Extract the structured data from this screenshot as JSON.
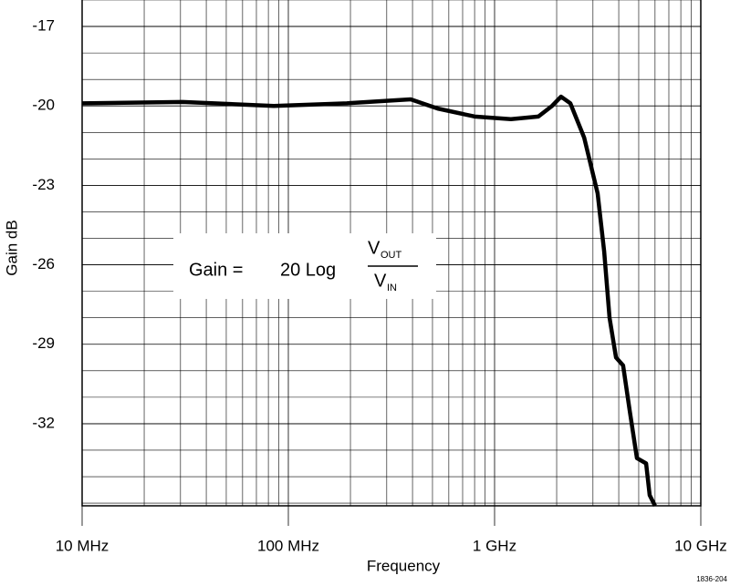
{
  "chart_data": {
    "type": "line",
    "x_label": "Frequency",
    "y_label": "Gain dB",
    "log_x": true,
    "grid": true,
    "xlim": [
      10000000,
      10000000000
    ],
    "xticks": [
      {
        "value": 10000000,
        "label": "10 MHz"
      },
      {
        "value": 100000000,
        "label": "100 MHz"
      },
      {
        "value": 1000000000,
        "label": "1 GHz"
      },
      {
        "value": 10000000000,
        "label": "10 GHz"
      }
    ],
    "ylim": [
      -35.1,
      -16
    ],
    "yticks": [
      -17,
      -20,
      -23,
      -26,
      -29,
      -32
    ],
    "series": [
      {
        "color": "#000000",
        "x": [
          10000000,
          30700000,
          85000000,
          192000000,
          392000000,
          530000000,
          800000000,
          1200000000,
          1630000000,
          1900000000,
          2100000000,
          2330000000,
          2720000000,
          3160000000,
          3400000000,
          3610000000,
          3880000000,
          4200000000,
          4520000000,
          4900000000,
          5430000000,
          5650000000,
          6000000000
        ],
        "values": [
          -19.9,
          -19.85,
          -20.0,
          -19.9,
          -19.75,
          -20.1,
          -20.4,
          -20.5,
          -20.4,
          -20.0,
          -19.65,
          -19.9,
          -21.2,
          -23.3,
          -25.5,
          -28.0,
          -29.5,
          -29.8,
          -31.5,
          -33.3,
          -33.5,
          -34.7,
          -35.1
        ]
      }
    ],
    "annotation": {
      "lhs": "Gain =",
      "rhs": "20 Log",
      "num": "V",
      "num_sub": "OUT",
      "den": "V",
      "den_sub": "IN"
    },
    "figure_id": "1836-204"
  }
}
